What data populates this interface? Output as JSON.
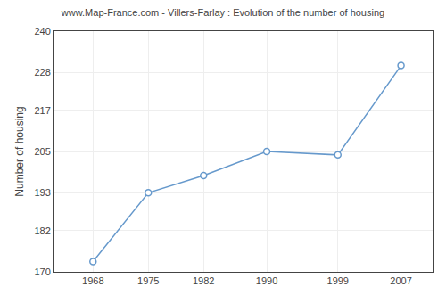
{
  "chart_data": {
    "type": "line",
    "title": "www.Map-France.com - Villers-Farlay : Evolution of the number of housing",
    "ylabel": "Number of housing",
    "x": [
      1968,
      1975,
      1982,
      1990,
      1999,
      2007
    ],
    "values": [
      173,
      193,
      198,
      205,
      204,
      230
    ],
    "color": "#6699cc",
    "marker": "circle",
    "xlim": [
      1963,
      2011
    ],
    "xticks": [
      1968,
      1975,
      1982,
      1990,
      1999,
      2007
    ],
    "ylim": [
      170,
      240
    ],
    "yticks": [
      170,
      182,
      193,
      205,
      217,
      228,
      240
    ],
    "grid": true
  }
}
